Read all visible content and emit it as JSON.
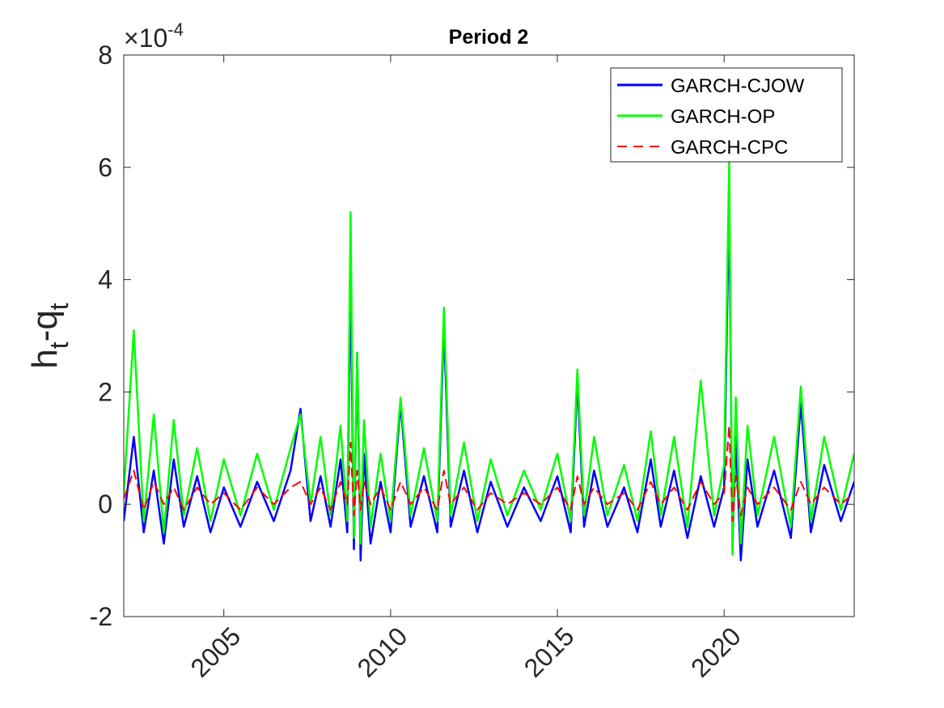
{
  "chart_data": {
    "type": "line",
    "title": "Period 2",
    "xlabel": "",
    "ylabel_main": "h",
    "ylabel_sub1": "t",
    "ylabel_mid": "-q",
    "ylabel_sub2": "t",
    "exponent_base": "×10",
    "exponent_power": "-4",
    "xlim": [
      2002.0,
      2023.9
    ],
    "ylim": [
      -2,
      8
    ],
    "x_ticks": [
      2005,
      2010,
      2015,
      2020
    ],
    "x_tick_labels": [
      "2005",
      "2010",
      "2015",
      "2020"
    ],
    "y_ticks": [
      -2,
      0,
      2,
      4,
      6,
      8
    ],
    "y_tick_labels": [
      "-2",
      "0",
      "2",
      "4",
      "6",
      "8"
    ],
    "grid": false,
    "legend_position": "top-right",
    "series": [
      {
        "name": "GARCH-CJOW",
        "color": "#0000ff",
        "style": "solid",
        "x": [
          2002.0,
          2002.3,
          2002.6,
          2002.9,
          2003.2,
          2003.5,
          2003.8,
          2004.2,
          2004.6,
          2005.0,
          2005.5,
          2006.0,
          2006.5,
          2007.0,
          2007.3,
          2007.6,
          2007.9,
          2008.2,
          2008.5,
          2008.7,
          2008.8,
          2008.9,
          2009.0,
          2009.1,
          2009.2,
          2009.4,
          2009.7,
          2010.0,
          2010.3,
          2010.6,
          2011.0,
          2011.4,
          2011.6,
          2011.8,
          2012.2,
          2012.6,
          2013.0,
          2013.5,
          2014.0,
          2014.5,
          2015.0,
          2015.4,
          2015.6,
          2015.8,
          2016.1,
          2016.5,
          2017.0,
          2017.4,
          2017.8,
          2018.1,
          2018.5,
          2018.9,
          2019.3,
          2019.7,
          2020.0,
          2020.15,
          2020.25,
          2020.35,
          2020.5,
          2020.7,
          2021.0,
          2021.5,
          2022.0,
          2022.3,
          2022.6,
          2023.0,
          2023.5,
          2023.9
        ],
        "y": [
          -0.3,
          1.2,
          -0.5,
          0.6,
          -0.7,
          0.8,
          -0.4,
          0.5,
          -0.5,
          0.3,
          -0.4,
          0.4,
          -0.3,
          0.6,
          1.7,
          -0.3,
          0.5,
          -0.4,
          0.8,
          -0.5,
          4.2,
          -0.8,
          2.7,
          -1.0,
          0.9,
          -0.7,
          0.4,
          -0.5,
          1.8,
          -0.4,
          0.5,
          -0.5,
          3.2,
          -0.4,
          0.6,
          -0.5,
          0.4,
          -0.4,
          0.3,
          -0.3,
          0.5,
          -0.5,
          2.2,
          -0.4,
          0.6,
          -0.4,
          0.3,
          -0.5,
          0.8,
          -0.4,
          0.6,
          -0.6,
          0.5,
          -0.4,
          0.3,
          5.5,
          -0.8,
          1.2,
          -1.0,
          0.8,
          -0.4,
          0.6,
          -0.6,
          1.8,
          -0.5,
          0.7,
          -0.3,
          0.4
        ]
      },
      {
        "name": "GARCH-OP",
        "color": "#00ff00",
        "style": "solid",
        "x": [
          2002.0,
          2002.3,
          2002.6,
          2002.9,
          2003.2,
          2003.5,
          2003.8,
          2004.2,
          2004.6,
          2005.0,
          2005.5,
          2006.0,
          2006.5,
          2007.0,
          2007.3,
          2007.6,
          2007.9,
          2008.2,
          2008.5,
          2008.7,
          2008.8,
          2008.9,
          2009.0,
          2009.1,
          2009.2,
          2009.4,
          2009.7,
          2010.0,
          2010.3,
          2010.6,
          2011.0,
          2011.4,
          2011.6,
          2011.8,
          2012.2,
          2012.6,
          2013.0,
          2013.5,
          2014.0,
          2014.5,
          2015.0,
          2015.4,
          2015.6,
          2015.8,
          2016.1,
          2016.5,
          2017.0,
          2017.4,
          2017.8,
          2018.1,
          2018.5,
          2018.9,
          2019.3,
          2019.7,
          2020.0,
          2020.15,
          2020.25,
          2020.35,
          2020.5,
          2020.7,
          2021.0,
          2021.5,
          2022.0,
          2022.3,
          2022.6,
          2023.0,
          2023.5,
          2023.9
        ],
        "y": [
          0.2,
          3.1,
          -0.3,
          1.6,
          -0.5,
          1.5,
          -0.2,
          1.0,
          -0.3,
          0.8,
          -0.2,
          0.9,
          -0.1,
          1.0,
          1.6,
          0.0,
          1.2,
          -0.2,
          1.4,
          -0.3,
          5.2,
          -0.6,
          2.7,
          -0.7,
          1.5,
          -0.4,
          0.9,
          -0.3,
          1.9,
          -0.2,
          1.0,
          -0.3,
          3.5,
          -0.2,
          1.1,
          -0.3,
          0.8,
          -0.2,
          0.6,
          -0.1,
          0.9,
          -0.3,
          2.4,
          -0.2,
          1.2,
          -0.2,
          0.7,
          -0.3,
          1.3,
          -0.2,
          1.2,
          -0.4,
          2.2,
          -0.2,
          0.7,
          6.1,
          -0.9,
          1.9,
          -0.7,
          1.4,
          -0.2,
          1.2,
          -0.4,
          2.1,
          -0.3,
          1.2,
          -0.1,
          0.9
        ]
      },
      {
        "name": "GARCH-CPC",
        "color": "#ff0000",
        "style": "dashed",
        "x": [
          2002.0,
          2002.3,
          2002.6,
          2002.9,
          2003.2,
          2003.5,
          2003.8,
          2004.2,
          2004.6,
          2005.0,
          2005.5,
          2006.0,
          2006.5,
          2007.0,
          2007.3,
          2007.6,
          2007.9,
          2008.2,
          2008.5,
          2008.7,
          2008.8,
          2008.9,
          2009.0,
          2009.1,
          2009.2,
          2009.4,
          2009.7,
          2010.0,
          2010.3,
          2010.6,
          2011.0,
          2011.4,
          2011.6,
          2011.8,
          2012.2,
          2012.6,
          2013.0,
          2013.5,
          2014.0,
          2014.5,
          2015.0,
          2015.4,
          2015.6,
          2015.8,
          2016.1,
          2016.5,
          2017.0,
          2017.4,
          2017.8,
          2018.1,
          2018.5,
          2018.9,
          2019.3,
          2019.7,
          2020.0,
          2020.15,
          2020.25,
          2020.35,
          2020.5,
          2020.7,
          2021.0,
          2021.5,
          2022.0,
          2022.3,
          2022.6,
          2023.0,
          2023.5,
          2023.9
        ],
        "y": [
          0.1,
          0.6,
          -0.1,
          0.4,
          0.0,
          0.3,
          -0.1,
          0.3,
          0.0,
          0.2,
          -0.1,
          0.3,
          0.0,
          0.3,
          0.4,
          0.0,
          0.3,
          -0.1,
          0.4,
          0.0,
          1.1,
          -0.2,
          0.6,
          -0.1,
          0.4,
          0.0,
          0.3,
          -0.1,
          0.4,
          0.0,
          0.3,
          -0.1,
          0.6,
          0.0,
          0.3,
          -0.1,
          0.2,
          0.0,
          0.2,
          0.0,
          0.3,
          -0.1,
          0.5,
          0.0,
          0.3,
          0.0,
          0.2,
          -0.1,
          0.4,
          0.0,
          0.3,
          -0.1,
          0.4,
          0.0,
          0.2,
          1.4,
          -0.3,
          0.5,
          -0.2,
          0.3,
          0.0,
          0.3,
          -0.1,
          0.4,
          0.0,
          0.3,
          0.0,
          0.2
        ]
      }
    ]
  }
}
